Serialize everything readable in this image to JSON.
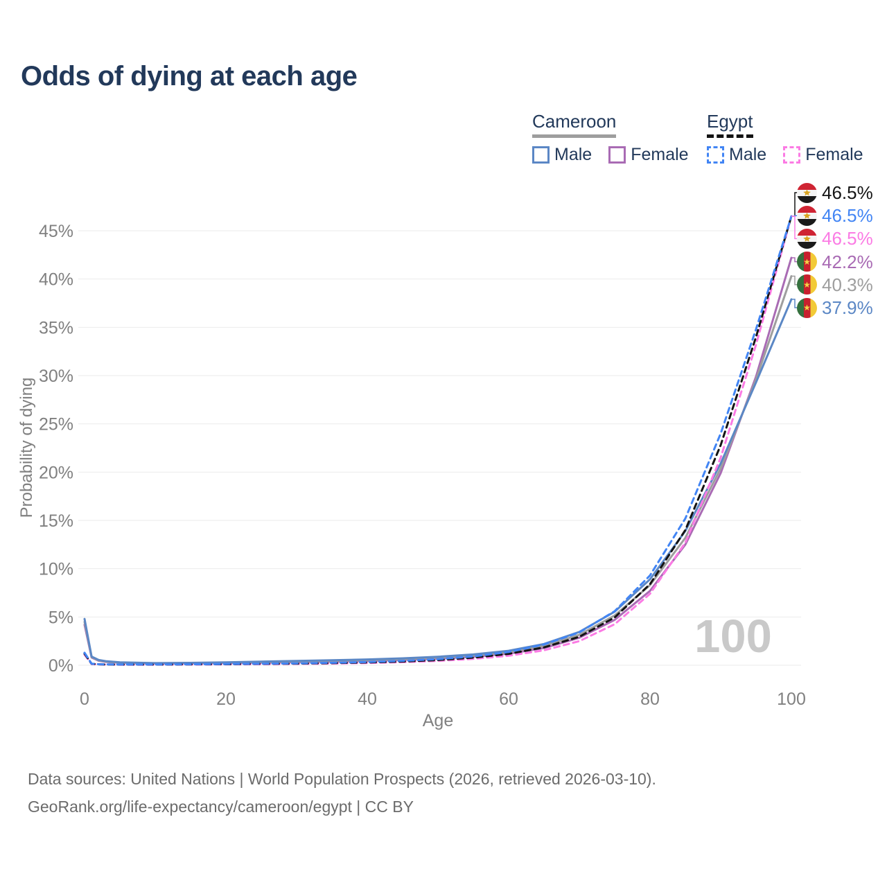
{
  "title": "Odds of dying at each age",
  "legend": {
    "groups": [
      {
        "label": "Cameroon",
        "underline_style": "solid",
        "underline_color": "#9e9e9e",
        "items": [
          {
            "label": "Male",
            "color": "#5b87c5",
            "dashed": false
          },
          {
            "label": "Female",
            "color": "#a96bb4",
            "dashed": false
          }
        ]
      },
      {
        "label": "Egypt",
        "underline_style": "dashed",
        "underline_color": "#141414",
        "items": [
          {
            "label": "Male",
            "color": "#4285f4",
            "dashed": true
          },
          {
            "label": "Female",
            "color": "#fb7be4",
            "dashed": true
          }
        ]
      }
    ]
  },
  "watermark": "100",
  "footer": {
    "line1": "Data sources: United Nations | World Population Prospects (2026, retrieved 2026-03-10).",
    "line2": "GeoRank.org/life-expectancy/cameroon/egypt | CC BY"
  },
  "colors": {
    "title_text": "#22395a",
    "axis_text": "#808080",
    "grid_line": "#ebebeb",
    "watermark": "#c9c9c9",
    "footer_text": "#6b6b6b"
  },
  "flag_colors": {
    "egypt": {
      "red": "#cf2433",
      "white": "#f4f4f4",
      "black": "#1a1a1a",
      "gold": "#d9a421"
    },
    "cameroon": {
      "green": "#35713e",
      "red": "#c8202e",
      "yellow": "#f2ca37",
      "star": "#f7d24a"
    }
  },
  "chart_data": {
    "type": "line",
    "title": "Odds of dying at each age",
    "xlabel": "Age",
    "ylabel": "Probability of dying",
    "xlim": [
      0,
      100
    ],
    "ylim": [
      0,
      47
    ],
    "x_ticks": [
      0,
      20,
      40,
      60,
      80,
      100
    ],
    "y_ticks": [
      0,
      5,
      10,
      15,
      20,
      25,
      30,
      35,
      40,
      45
    ],
    "y_tick_suffix": "%",
    "grid": "horizontal",
    "legend_position": "top-right",
    "highlight_age_watermark": 100,
    "ages": [
      0,
      1,
      2,
      3,
      5,
      10,
      15,
      20,
      25,
      30,
      35,
      40,
      45,
      50,
      55,
      60,
      65,
      70,
      75,
      80,
      85,
      90,
      95,
      100
    ],
    "series": [
      {
        "name": "Cameroon Female",
        "country": "cameroon",
        "sex": "female",
        "color": "#a96bb4",
        "dashed": false,
        "row": 3,
        "end_label": "42.2%",
        "values": [
          4.2,
          0.8,
          0.47,
          0.35,
          0.25,
          0.18,
          0.2,
          0.23,
          0.27,
          0.32,
          0.38,
          0.45,
          0.55,
          0.68,
          0.88,
          1.2,
          1.78,
          2.85,
          4.7,
          7.7,
          12.5,
          19.9,
          29.9,
          42.2
        ]
      },
      {
        "name": "Cameroon Both",
        "country": "cameroon",
        "sex": "both",
        "color": "#9e9e9e",
        "dashed": false,
        "row": 4,
        "end_label": "40.3%",
        "values": [
          4.5,
          0.85,
          0.5,
          0.38,
          0.27,
          0.2,
          0.22,
          0.27,
          0.33,
          0.39,
          0.45,
          0.53,
          0.63,
          0.78,
          1.0,
          1.36,
          2.0,
          3.15,
          5.15,
          8.3,
          13.2,
          20.4,
          29.6,
          40.3
        ]
      },
      {
        "name": "Cameroon Male",
        "country": "cameroon",
        "sex": "male",
        "color": "#5b87c5",
        "dashed": false,
        "row": 5,
        "end_label": "37.9%",
        "values": [
          4.8,
          0.9,
          0.55,
          0.42,
          0.3,
          0.22,
          0.25,
          0.31,
          0.38,
          0.45,
          0.52,
          0.6,
          0.72,
          0.88,
          1.12,
          1.5,
          2.2,
          3.45,
          5.55,
          8.9,
          13.9,
          20.9,
          29.3,
          37.9
        ]
      },
      {
        "name": "Egypt Female",
        "country": "egypt",
        "sex": "female",
        "color": "#fb7be4",
        "dashed": true,
        "row": 2,
        "end_label": "46.5%",
        "values": [
          1.1,
          0.13,
          0.09,
          0.07,
          0.06,
          0.06,
          0.07,
          0.09,
          0.11,
          0.14,
          0.18,
          0.24,
          0.32,
          0.45,
          0.66,
          0.98,
          1.55,
          2.5,
          4.25,
          7.4,
          12.7,
          21.5,
          33.2,
          46.5
        ]
      },
      {
        "name": "Egypt Both",
        "country": "egypt",
        "sex": "both",
        "color": "#141414",
        "dashed": true,
        "row": 0,
        "end_label": "46.5%",
        "values": [
          1.2,
          0.15,
          0.1,
          0.08,
          0.07,
          0.07,
          0.09,
          0.11,
          0.14,
          0.17,
          0.22,
          0.29,
          0.39,
          0.54,
          0.79,
          1.18,
          1.85,
          2.95,
          4.95,
          8.4,
          14.0,
          22.8,
          34.0,
          46.5
        ]
      },
      {
        "name": "Egypt Male",
        "country": "egypt",
        "sex": "male",
        "color": "#4285f4",
        "dashed": true,
        "row": 1,
        "end_label": "46.5%",
        "values": [
          1.3,
          0.16,
          0.11,
          0.09,
          0.08,
          0.08,
          0.1,
          0.13,
          0.16,
          0.2,
          0.26,
          0.34,
          0.46,
          0.63,
          0.92,
          1.38,
          2.15,
          3.4,
          5.6,
          9.3,
          15.2,
          24.0,
          34.8,
          46.5
        ]
      }
    ]
  }
}
